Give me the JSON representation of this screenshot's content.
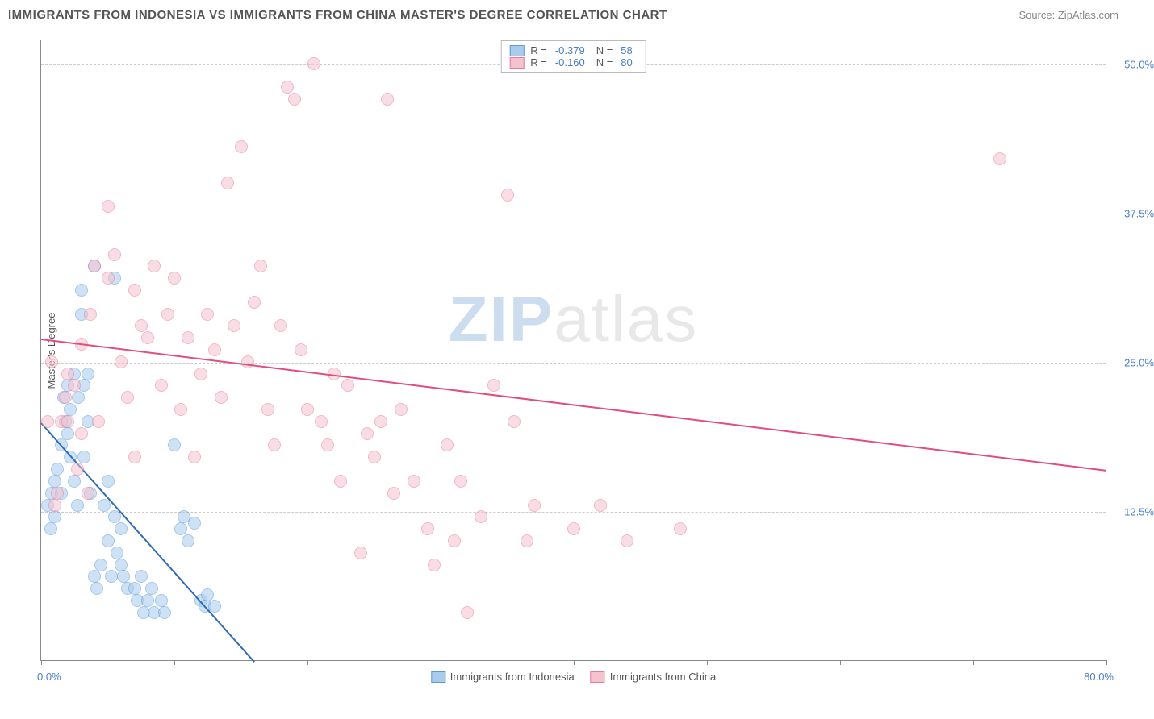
{
  "title": "IMMIGRANTS FROM INDONESIA VS IMMIGRANTS FROM CHINA MASTER'S DEGREE CORRELATION CHART",
  "source_label": "Source: ZipAtlas.com",
  "watermark": {
    "part1": "ZIP",
    "part2": "atlas"
  },
  "chart": {
    "type": "scatter",
    "xlim": [
      0,
      80
    ],
    "ylim": [
      0,
      52
    ],
    "xlim_labels": {
      "min": "0.0%",
      "max": "80.0%"
    },
    "xtick_positions": [
      0,
      10,
      20,
      30,
      40,
      50,
      60,
      70,
      80
    ],
    "yticks": [
      {
        "value": 12.5,
        "label": "12.5%"
      },
      {
        "value": 25.0,
        "label": "25.0%"
      },
      {
        "value": 37.5,
        "label": "37.5%"
      },
      {
        "value": 50.0,
        "label": "50.0%"
      }
    ],
    "ylabel": "Master's Degree",
    "background_color": "#ffffff",
    "grid_color": "#cccccc",
    "axis_color": "#888888",
    "tick_label_color": "#4a7ec9",
    "marker_radius": 8,
    "marker_opacity": 0.55,
    "marker_border_width": 1,
    "series": [
      {
        "name": "Immigrants from Indonesia",
        "fill_color": "#a9cced",
        "border_color": "#5b9bd5",
        "line_color": "#2e6cb5",
        "R": "-0.379",
        "N": "58",
        "trend": {
          "x1": 0,
          "y1": 20,
          "x2": 16,
          "y2": 0
        },
        "points": [
          [
            0.5,
            13
          ],
          [
            0.7,
            11
          ],
          [
            0.8,
            14
          ],
          [
            1,
            15
          ],
          [
            1,
            12
          ],
          [
            1.2,
            16
          ],
          [
            1.5,
            18
          ],
          [
            1.5,
            14
          ],
          [
            1.7,
            22
          ],
          [
            1.8,
            20
          ],
          [
            2,
            23
          ],
          [
            2,
            19
          ],
          [
            2.2,
            17
          ],
          [
            2.2,
            21
          ],
          [
            2.5,
            24
          ],
          [
            2.5,
            15
          ],
          [
            2.7,
            13
          ],
          [
            2.8,
            22
          ],
          [
            3,
            31
          ],
          [
            3,
            29
          ],
          [
            3.2,
            23
          ],
          [
            3.2,
            17
          ],
          [
            3.5,
            24
          ],
          [
            3.5,
            20
          ],
          [
            3.7,
            14
          ],
          [
            4,
            33
          ],
          [
            4,
            7
          ],
          [
            4.2,
            6
          ],
          [
            4.5,
            8
          ],
          [
            4.7,
            13
          ],
          [
            5,
            15
          ],
          [
            5,
            10
          ],
          [
            5.3,
            7
          ],
          [
            5.5,
            12
          ],
          [
            5.5,
            32
          ],
          [
            5.7,
            9
          ],
          [
            6,
            8
          ],
          [
            6,
            11
          ],
          [
            6.2,
            7
          ],
          [
            6.5,
            6
          ],
          [
            7,
            6
          ],
          [
            7.2,
            5
          ],
          [
            7.5,
            7
          ],
          [
            7.7,
            4
          ],
          [
            8,
            5
          ],
          [
            8.3,
            6
          ],
          [
            8.5,
            4
          ],
          [
            9,
            5
          ],
          [
            9.3,
            4
          ],
          [
            10,
            18
          ],
          [
            10.5,
            11
          ],
          [
            10.7,
            12
          ],
          [
            11,
            10
          ],
          [
            11.5,
            11.5
          ],
          [
            12,
            5
          ],
          [
            12.3,
            4.5
          ],
          [
            12.5,
            5.5
          ],
          [
            13,
            4.5
          ]
        ]
      },
      {
        "name": "Immigrants from China",
        "fill_color": "#f5c3d0",
        "border_color": "#e87b9a",
        "line_color": "#e24d7b",
        "R": "-0.160",
        "N": "80",
        "trend": {
          "x1": 0,
          "y1": 27,
          "x2": 80,
          "y2": 16
        },
        "points": [
          [
            0.5,
            20
          ],
          [
            0.8,
            25
          ],
          [
            1,
            13
          ],
          [
            1.2,
            14
          ],
          [
            1.5,
            20
          ],
          [
            1.8,
            22
          ],
          [
            2,
            20
          ],
          [
            2,
            24
          ],
          [
            2.5,
            23
          ],
          [
            2.7,
            16
          ],
          [
            3,
            26.5
          ],
          [
            3,
            19
          ],
          [
            3.5,
            14
          ],
          [
            3.7,
            29
          ],
          [
            4,
            33
          ],
          [
            4.3,
            20
          ],
          [
            5,
            32
          ],
          [
            5,
            38
          ],
          [
            5.5,
            34
          ],
          [
            6,
            25
          ],
          [
            6.5,
            22
          ],
          [
            7,
            17
          ],
          [
            7,
            31
          ],
          [
            7.5,
            28
          ],
          [
            8,
            27
          ],
          [
            8.5,
            33
          ],
          [
            9,
            23
          ],
          [
            9.5,
            29
          ],
          [
            10,
            32
          ],
          [
            10.5,
            21
          ],
          [
            11,
            27
          ],
          [
            11.5,
            17
          ],
          [
            12,
            24
          ],
          [
            12.5,
            29
          ],
          [
            13,
            26
          ],
          [
            13.5,
            22
          ],
          [
            14,
            40
          ],
          [
            14.5,
            28
          ],
          [
            15,
            43
          ],
          [
            15.5,
            25
          ],
          [
            16,
            30
          ],
          [
            16.5,
            33
          ],
          [
            17,
            21
          ],
          [
            17.5,
            18
          ],
          [
            18,
            28
          ],
          [
            18.5,
            48
          ],
          [
            19,
            47
          ],
          [
            19.5,
            26
          ],
          [
            20,
            21
          ],
          [
            20.5,
            50
          ],
          [
            21,
            20
          ],
          [
            21.5,
            18
          ],
          [
            22,
            24
          ],
          [
            22.5,
            15
          ],
          [
            23,
            23
          ],
          [
            24,
            9
          ],
          [
            24.5,
            19
          ],
          [
            25,
            17
          ],
          [
            25.5,
            20
          ],
          [
            26,
            47
          ],
          [
            26.5,
            14
          ],
          [
            27,
            21
          ],
          [
            28,
            15
          ],
          [
            29,
            11
          ],
          [
            29.5,
            8
          ],
          [
            30.5,
            18
          ],
          [
            31,
            10
          ],
          [
            31.5,
            15
          ],
          [
            32,
            4
          ],
          [
            33,
            12
          ],
          [
            34,
            23
          ],
          [
            35,
            39
          ],
          [
            35.5,
            20
          ],
          [
            36.5,
            10
          ],
          [
            37,
            13
          ],
          [
            40,
            11
          ],
          [
            42,
            13
          ],
          [
            44,
            10
          ],
          [
            48,
            11
          ],
          [
            72,
            42
          ]
        ]
      }
    ]
  },
  "legend_top_labels": {
    "R": "R =",
    "N": "N ="
  }
}
